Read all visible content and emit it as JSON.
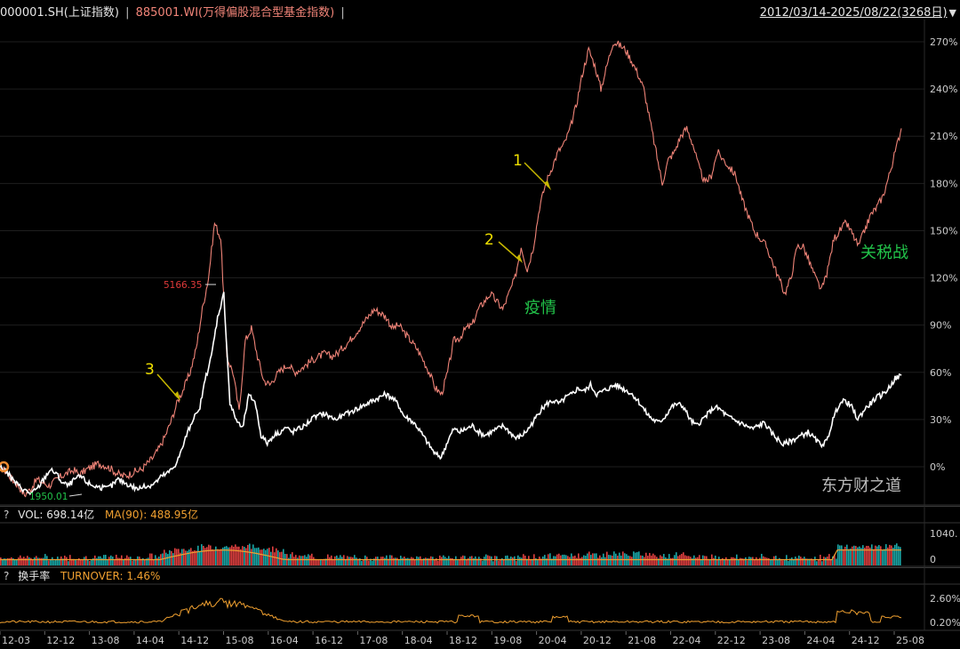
{
  "header": {
    "symbol": "000001.SH(上证指数)",
    "separator": "|",
    "index": "885001.WI(万得偏股混合型基金指数)",
    "range": "2012/03/14-2025/08/22(3268日)"
  },
  "volume_panel": {
    "help": "?",
    "label": "VOL: 698.14亿",
    "ma": "MA(90): 488.95亿",
    "ytick_top": "1040.",
    "ytick_bottom": "0"
  },
  "turnover_panel": {
    "help": "?",
    "name": "换手率",
    "label": "TURNOVER: 1.46%",
    "ytick_top": "2.60%",
    "ytick_bottom": "0.20%"
  },
  "annotations": {
    "n1": "1",
    "n2": "2",
    "n3": "3",
    "covid": "疫情",
    "tariff": "关税战",
    "peak": "5166.35",
    "low": "1950.01",
    "watermark": "东方财之道"
  },
  "chart_data": {
    "type": "line",
    "x_ticks": [
      "12-03",
      "12-12",
      "13-08",
      "14-04",
      "14-12",
      "15-08",
      "16-04",
      "16-12",
      "17-08",
      "18-04",
      "18-12",
      "19-08",
      "20-04",
      "20-12",
      "21-08",
      "22-04",
      "22-12",
      "23-08",
      "24-04",
      "24-12",
      "25-08"
    ],
    "y_ticks": [
      "270%",
      "240%",
      "210%",
      "180%",
      "150%",
      "120%",
      "90%",
      "60%",
      "30%",
      "0%"
    ],
    "ylim": [
      -20,
      280
    ],
    "series": [
      {
        "name": "885001.WI(万得偏股混合型基金指数)",
        "color": "#f08478",
        "values": [
          0,
          -3,
          -8,
          -12,
          -18,
          -14,
          -8,
          -10,
          -12,
          -9,
          -6,
          -4,
          -2,
          -5,
          -2,
          0,
          2,
          1,
          -1,
          -4,
          -6,
          -5,
          -3,
          -2,
          2,
          6,
          12,
          20,
          30,
          42,
          50,
          60,
          75,
          100,
          120,
          155,
          145,
          70,
          60,
          35,
          80,
          88,
          70,
          55,
          52,
          58,
          62,
          65,
          60,
          62,
          65,
          68,
          70,
          72,
          70,
          72,
          76,
          80,
          85,
          90,
          95,
          100,
          98,
          95,
          88,
          90,
          85,
          80,
          75,
          68,
          60,
          50,
          46,
          60,
          80,
          82,
          88,
          90,
          100,
          105,
          110,
          105,
          100,
          110,
          120,
          140,
          125,
          140,
          165,
          180,
          190,
          200,
          205,
          215,
          230,
          250,
          265,
          255,
          240,
          255,
          270,
          268,
          265,
          258,
          250,
          240,
          220,
          200,
          180,
          195,
          200,
          210,
          215,
          205,
          190,
          180,
          185,
          200,
          195,
          190,
          185,
          170,
          160,
          150,
          145,
          140,
          130,
          120,
          110,
          120,
          140,
          140,
          130,
          120,
          112,
          125,
          145,
          150,
          155,
          148,
          140,
          150,
          160,
          165,
          172,
          185,
          200,
          215
        ]
      },
      {
        "name": "000001.SH(上证指数)",
        "color": "#ffffff",
        "values": [
          0,
          -3,
          -8,
          -12,
          -15,
          -17,
          -14,
          -8,
          -2,
          -4,
          -10,
          -12,
          -8,
          -6,
          -10,
          -12,
          -13,
          -14,
          -12,
          -8,
          -10,
          -12,
          -14,
          -13,
          -12,
          -10,
          -6,
          -4,
          0,
          8,
          20,
          30,
          35,
          55,
          70,
          95,
          110,
          40,
          30,
          24,
          45,
          42,
          20,
          15,
          20,
          22,
          25,
          22,
          24,
          26,
          30,
          32,
          34,
          32,
          30,
          32,
          34,
          36,
          38,
          40,
          42,
          44,
          46,
          44,
          40,
          32,
          30,
          26,
          20,
          14,
          8,
          6,
          16,
          24,
          22,
          24,
          26,
          22,
          20,
          22,
          24,
          26,
          22,
          18,
          20,
          24,
          30,
          36,
          40,
          42,
          40,
          44,
          46,
          50,
          48,
          52,
          46,
          48,
          50,
          52,
          50,
          48,
          45,
          40,
          34,
          30,
          28,
          32,
          38,
          40,
          38,
          30,
          26,
          30,
          34,
          38,
          36,
          32,
          30,
          28,
          26,
          24,
          26,
          28,
          22,
          18,
          14,
          16,
          18,
          20,
          22,
          18,
          14,
          16,
          30,
          40,
          42,
          38,
          30,
          36,
          40,
          44,
          46,
          50,
          56,
          58
        ]
      }
    ],
    "volume": {
      "ma_color": "#f0a030"
    },
    "turnover": {
      "color": "#f0a030"
    }
  }
}
